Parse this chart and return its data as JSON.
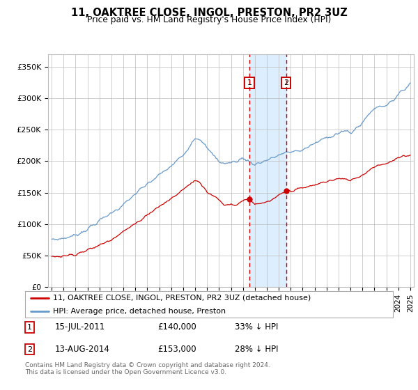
{
  "title": "11, OAKTREE CLOSE, INGOL, PRESTON, PR2 3UZ",
  "subtitle": "Price paid vs. HM Land Registry's House Price Index (HPI)",
  "footnote": "Contains HM Land Registry data © Crown copyright and database right 2024.\nThis data is licensed under the Open Government Licence v3.0.",
  "legend_line1": "11, OAKTREE CLOSE, INGOL, PRESTON, PR2 3UZ (detached house)",
  "legend_line2": "HPI: Average price, detached house, Preston",
  "point1_date": "15-JUL-2011",
  "point1_price": "£140,000",
  "point1_hpi": "33% ↓ HPI",
  "point2_date": "13-AUG-2014",
  "point2_price": "£153,000",
  "point2_hpi": "28% ↓ HPI",
  "point1_year": 2011.54,
  "point2_year": 2014.62,
  "point1_value": 140000,
  "point2_value": 153000,
  "red_color": "#cc0000",
  "blue_color": "#6699cc",
  "shade_color": "#ddeeff",
  "grid_color": "#bbbbbb",
  "ylim": [
    0,
    370000
  ],
  "xlim_start": 1994.7,
  "xlim_end": 2025.3,
  "yticks": [
    0,
    50000,
    100000,
    150000,
    200000,
    250000,
    300000,
    350000
  ],
  "ytick_labels": [
    "£0",
    "£50K",
    "£100K",
    "£150K",
    "£200K",
    "£250K",
    "£300K",
    "£350K"
  ],
  "xticks": [
    1995,
    1996,
    1997,
    1998,
    1999,
    2000,
    2001,
    2002,
    2003,
    2004,
    2005,
    2006,
    2007,
    2008,
    2009,
    2010,
    2011,
    2012,
    2013,
    2014,
    2015,
    2016,
    2017,
    2018,
    2019,
    2020,
    2021,
    2022,
    2023,
    2024,
    2025
  ]
}
